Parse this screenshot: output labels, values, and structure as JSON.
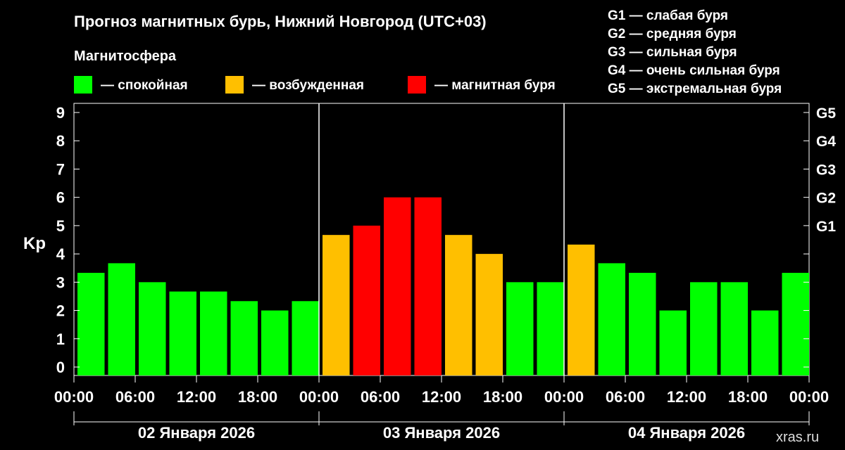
{
  "chart_data": {
    "type": "bar",
    "title": "Прогноз магнитных бурь, Нижний Новгород (UTC+03)",
    "subtitle": "Магнитосфера",
    "ylabel": "Kp",
    "ylim": [
      0,
      9
    ],
    "y_ticks": [
      "0",
      "1",
      "2",
      "3",
      "4",
      "5",
      "6",
      "7",
      "8",
      "9"
    ],
    "right_ticks": [
      {
        "value": 5,
        "label": "G1"
      },
      {
        "value": 6,
        "label": "G2"
      },
      {
        "value": 7,
        "label": "G3"
      },
      {
        "value": 8,
        "label": "G4"
      },
      {
        "value": 9,
        "label": "G5"
      }
    ],
    "x_ticks": [
      "00:00",
      "06:00",
      "12:00",
      "18:00",
      "00:00",
      "06:00",
      "12:00",
      "18:00",
      "00:00",
      "06:00",
      "12:00",
      "18:00",
      "00:00"
    ],
    "days": [
      "02 Января 2026",
      "03 Января 2026",
      "04 Января 2026"
    ],
    "values": [
      3.33,
      3.67,
      3,
      2.67,
      2.67,
      2.33,
      2,
      2.33,
      4.67,
      5,
      6,
      6,
      4.67,
      4,
      3,
      3,
      4.33,
      3.67,
      3.33,
      2,
      3,
      3,
      2,
      3.33
    ],
    "categories_level": [
      "calm",
      "calm",
      "calm",
      "calm",
      "calm",
      "calm",
      "calm",
      "calm",
      "excited",
      "storm",
      "storm",
      "storm",
      "excited",
      "excited",
      "calm",
      "calm",
      "excited",
      "calm",
      "calm",
      "calm",
      "calm",
      "calm",
      "calm",
      "calm"
    ],
    "legend": [
      {
        "key": "calm",
        "label": "— спокойная",
        "color": "#00ff00"
      },
      {
        "key": "excited",
        "label": "— возбужденная",
        "color": "#ffbf00"
      },
      {
        "key": "storm",
        "label": "— магнитная буря",
        "color": "#ff0000"
      }
    ],
    "storm_levels": [
      "G1 — слабая буря",
      "G2 — средняя буря",
      "G3 — сильная буря",
      "G4 — очень сильная буря",
      "G5 — экстремальная буря"
    ],
    "grid": false,
    "legend_position": "top"
  },
  "watermark": "xras.ru"
}
